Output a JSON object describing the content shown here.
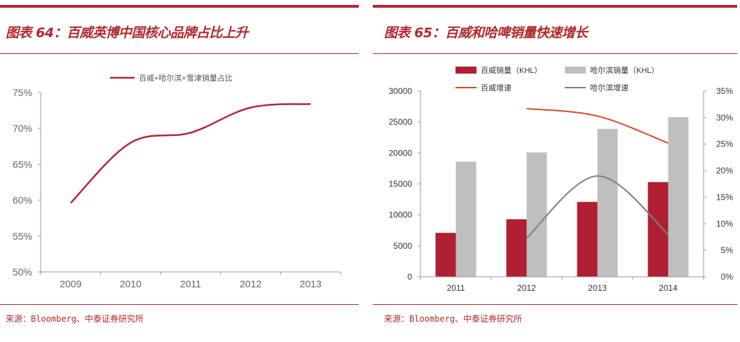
{
  "left_panel": {
    "title": "图表 64：百威英博中国核心品牌占比上升",
    "source": "来源：Bloomberg、中泰证券研究所"
  },
  "right_panel": {
    "title": "图表 65：百威和哈啤销量快速增长",
    "source": "来源：Bloomberg、中泰证券研究所"
  },
  "chart_data": [
    {
      "type": "line",
      "categories": [
        "2009",
        "2010",
        "2011",
        "2012",
        "2013"
      ],
      "series": [
        {
          "name": "百威+哈尔滨+雪津销量占比",
          "values": [
            59.6,
            68.0,
            69.4,
            72.9,
            73.4
          ],
          "color": "#b2283a"
        }
      ],
      "ylim": [
        50,
        75
      ],
      "yticks": [
        "50%",
        "55%",
        "60%",
        "65%",
        "70%",
        "75%"
      ],
      "ytick_values": [
        50,
        55,
        60,
        65,
        70,
        75
      ],
      "legend": "top",
      "grid": false,
      "smooth": true
    },
    {
      "type": "bar+line",
      "categories": [
        "2011",
        "2012",
        "2013",
        "2014"
      ],
      "series": [
        {
          "name": "百威销量（KHL）",
          "type": "bar",
          "axis": "left",
          "values": [
            7100,
            9300,
            12100,
            15300
          ],
          "color": "#b01f32"
        },
        {
          "name": "哈尔滨销量（KHL）",
          "type": "bar",
          "axis": "left",
          "values": [
            18600,
            20100,
            23900,
            25800
          ],
          "color": "#bfbfbf"
        },
        {
          "name": "百威增速",
          "type": "line",
          "axis": "right",
          "values": [
            null,
            31.7,
            30.3,
            25.2
          ],
          "color": "#d9482b"
        },
        {
          "name": "哈尔滨增速",
          "type": "line",
          "axis": "right",
          "values": [
            null,
            7.3,
            19.0,
            8.0
          ],
          "color": "#7f7f7f"
        }
      ],
      "ylim_left": [
        0,
        30000
      ],
      "yticks_left": [
        "0",
        "5000",
        "10000",
        "15000",
        "20000",
        "25000",
        "30000"
      ],
      "ytick_values_left": [
        0,
        5000,
        10000,
        15000,
        20000,
        25000,
        30000
      ],
      "ylim_right": [
        0,
        35
      ],
      "yticks_right": [
        "0%",
        "5%",
        "10%",
        "15%",
        "20%",
        "25%",
        "30%",
        "35%"
      ],
      "ytick_values_right": [
        0,
        5,
        10,
        15,
        20,
        25,
        30,
        35
      ],
      "legend": "top",
      "grid": false,
      "smooth": true
    }
  ]
}
